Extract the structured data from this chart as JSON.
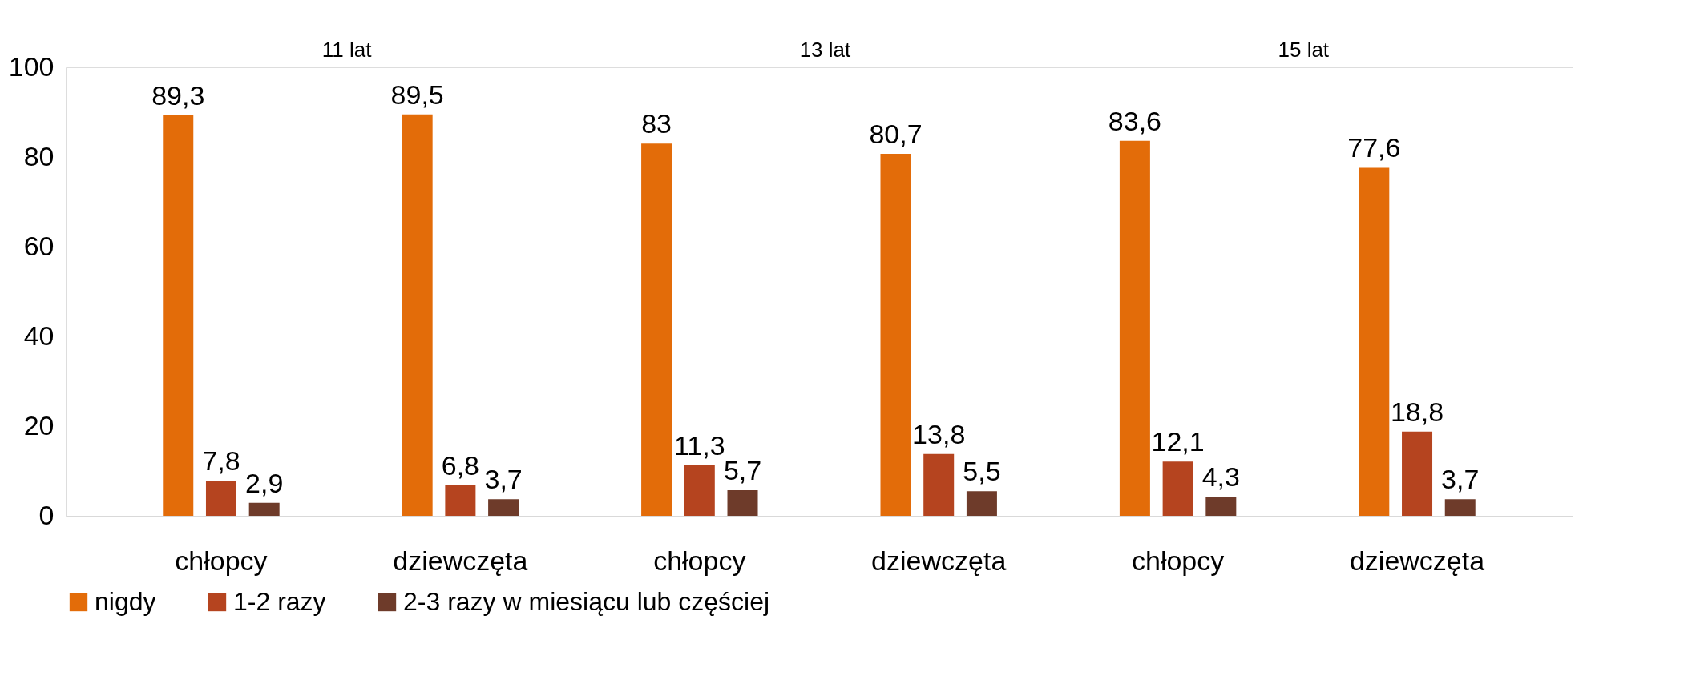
{
  "chart_data": {
    "type": "bar",
    "categories": [
      "chłopcy",
      "dziewczęta",
      "chłopcy",
      "dziewczęta",
      "chłopcy",
      "dziewczęta"
    ],
    "series": [
      {
        "name": "nigdy",
        "color": "#e36c09",
        "values": [
          89.3,
          89.5,
          83,
          80.7,
          83.6,
          77.6
        ]
      },
      {
        "name": "1-2 razy",
        "color": "#b5441f",
        "values": [
          7.8,
          6.8,
          11.3,
          13.8,
          12.1,
          18.8
        ]
      },
      {
        "name": "2-3 razy w miesiącu lub częściej",
        "color": "#6e3b2a",
        "values": [
          2.9,
          3.7,
          5.7,
          5.5,
          4.3,
          3.7
        ]
      }
    ],
    "value_labels": [
      [
        "89,3",
        "89,5",
        "83",
        "80,7",
        "83,6",
        "77,6"
      ],
      [
        "7,8",
        "6,8",
        "11,3",
        "13,8",
        "12,1",
        "18,8"
      ],
      [
        "2,9",
        "3,7",
        "5,7",
        "5,5",
        "4,3",
        "3,7"
      ]
    ],
    "annotations": [
      "11 lat",
      "13 lat",
      "15 lat"
    ],
    "ylim": [
      0,
      100
    ],
    "yticks": [
      0,
      20,
      40,
      60,
      80,
      100
    ],
    "grid": false,
    "legend": "bottom"
  }
}
